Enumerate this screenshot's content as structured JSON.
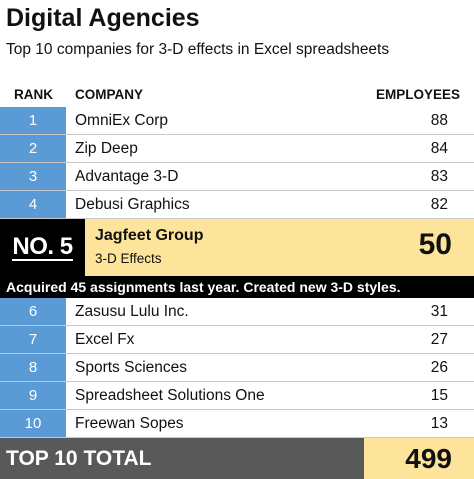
{
  "title": "Digital Agencies",
  "subtitle": "Top 10 companies for 3-D effects in Excel spreadsheets",
  "headers": {
    "rank": "RANK",
    "company": "COMPANY",
    "employees": "EMPLOYEES"
  },
  "rows_top": [
    {
      "rank": "1",
      "company": "OmniEx Corp",
      "employees": "88"
    },
    {
      "rank": "2",
      "company": "Zip Deep",
      "employees": "84"
    },
    {
      "rank": "3",
      "company": "Advantage 3-D",
      "employees": "83"
    },
    {
      "rank": "4",
      "company": "Debusi Graphics",
      "employees": "82"
    }
  ],
  "featured": {
    "badge": "NO. 5",
    "company": "Jagfeet Group",
    "category": "3-D Effects",
    "employees": "50",
    "note": "Acquired 45 assignments last year.  Created new 3-D styles."
  },
  "rows_bottom": [
    {
      "rank": "6",
      "company": "Zasusu Lulu Inc.",
      "employees": "31"
    },
    {
      "rank": "7",
      "company": "Excel Fx",
      "employees": "27"
    },
    {
      "rank": "8",
      "company": "Sports Sciences",
      "employees": "26"
    },
    {
      "rank": "9",
      "company": "Spreadsheet Solutions One",
      "employees": "15"
    },
    {
      "rank": "10",
      "company": "Freewan Sopes",
      "employees": "13"
    }
  ],
  "total": {
    "label": "TOP 10 TOTAL",
    "value": "499"
  },
  "colors": {
    "rank_bg": "#5b9bd5",
    "highlight": "#fde49b",
    "total_bg": "#595959",
    "badge_bg": "#000000"
  }
}
